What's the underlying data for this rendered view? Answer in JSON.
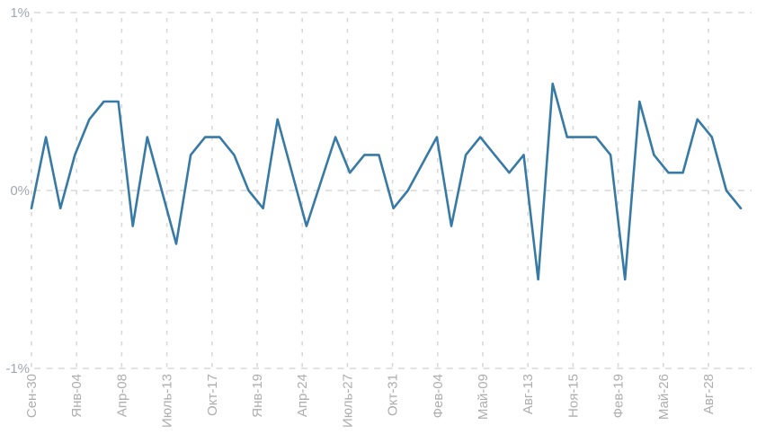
{
  "chart_data": {
    "type": "line",
    "title": "",
    "xlabel": "",
    "ylabel": "",
    "legend": "none",
    "grid": "dashed vertical lines at each x tick and dashed horizontal lines at each y tick",
    "ylim": [
      -1,
      1
    ],
    "y_tick_values": [
      1,
      0,
      -1
    ],
    "y_tick_labels": [
      "1%",
      "0%",
      "-1%"
    ],
    "x_tick_labels": [
      "Сен-30",
      "Янв-04",
      "Апр-08",
      "Июль-13",
      "Окт-17",
      "Янв-19",
      "Апр-24",
      "Июль-27",
      "Окт-31",
      "Фев-04",
      "Май-09",
      "Авг-13",
      "Ноя-15",
      "Фев-19",
      "Май-26",
      "Авг-28"
    ],
    "x_tick_label_rotation_deg": -90,
    "series": [
      {
        "name": "percent-change",
        "color": "#377aa5",
        "values": [
          -0.1,
          0.3,
          -0.1,
          0.2,
          0.4,
          0.5,
          0.5,
          -0.2,
          0.3,
          0.0,
          -0.3,
          0.2,
          0.3,
          0.3,
          0.2,
          0.0,
          -0.1,
          0.4,
          0.1,
          -0.2,
          0.05,
          0.3,
          0.1,
          0.2,
          0.2,
          -0.1,
          0.0,
          0.15,
          0.3,
          -0.2,
          0.2,
          0.3,
          0.2,
          0.1,
          0.2,
          -0.5,
          0.6,
          0.3,
          0.3,
          0.3,
          0.2,
          -0.5,
          0.5,
          0.2,
          0.1,
          0.1,
          0.4,
          0.3,
          0.0,
          -0.1
        ]
      }
    ],
    "colors": {
      "line": "#377aa5",
      "gridline": "#d9d9d9",
      "y_tick_text": "#9fa9b2",
      "x_tick_text": "#aeaeae",
      "background": "#ffffff"
    }
  }
}
